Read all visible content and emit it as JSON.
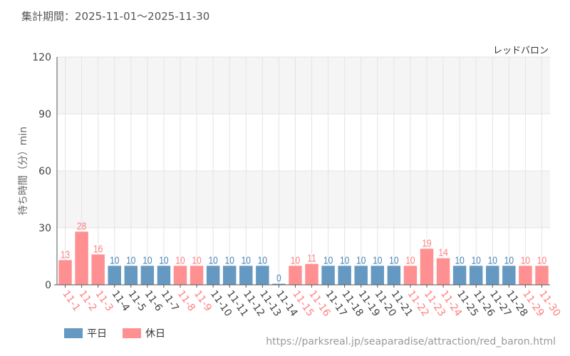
{
  "header": {
    "period": "集計期間：2025-11-01～2025-11-30",
    "attraction": "レッドバロン"
  },
  "footer": {
    "url": "https://parksreal.jp/seaparadise/attraction/red_baron.html"
  },
  "colors": {
    "weekday": "#6699c2",
    "holiday": "#ff9092",
    "weekday_label": "#4a86b8",
    "holiday_label": "#ff7f80"
  },
  "chart_data": {
    "type": "bar",
    "ylabel": "待ち時間（分）min",
    "ylim": [
      0,
      120
    ],
    "yticks": [
      0,
      30,
      60,
      90,
      120
    ],
    "grid": true,
    "legend_position": "bottom-left",
    "legend": [
      {
        "name": "平日",
        "key": "weekday"
      },
      {
        "name": "休日",
        "key": "holiday"
      }
    ],
    "categories": [
      "11-1",
      "11-2",
      "11-3",
      "11-4",
      "11-5",
      "11-6",
      "11-7",
      "11-8",
      "11-9",
      "11-10",
      "11-11",
      "11-12",
      "11-13",
      "11-14",
      "11-15",
      "11-16",
      "11-17",
      "11-18",
      "11-19",
      "11-20",
      "11-21",
      "11-22",
      "11-23",
      "11-24",
      "11-25",
      "11-26",
      "11-27",
      "11-28",
      "11-29",
      "11-30"
    ],
    "values": [
      13,
      28,
      16,
      10,
      10,
      10,
      10,
      10,
      10,
      10,
      10,
      10,
      10,
      0,
      10,
      11,
      10,
      10,
      10,
      10,
      10,
      10,
      19,
      14,
      10,
      10,
      10,
      10,
      10,
      10
    ],
    "day_type": [
      "holiday",
      "holiday",
      "holiday",
      "weekday",
      "weekday",
      "weekday",
      "weekday",
      "holiday",
      "holiday",
      "weekday",
      "weekday",
      "weekday",
      "weekday",
      "weekday",
      "holiday",
      "holiday",
      "weekday",
      "weekday",
      "weekday",
      "weekday",
      "weekday",
      "holiday",
      "holiday",
      "holiday",
      "weekday",
      "weekday",
      "weekday",
      "weekday",
      "holiday",
      "holiday"
    ]
  }
}
